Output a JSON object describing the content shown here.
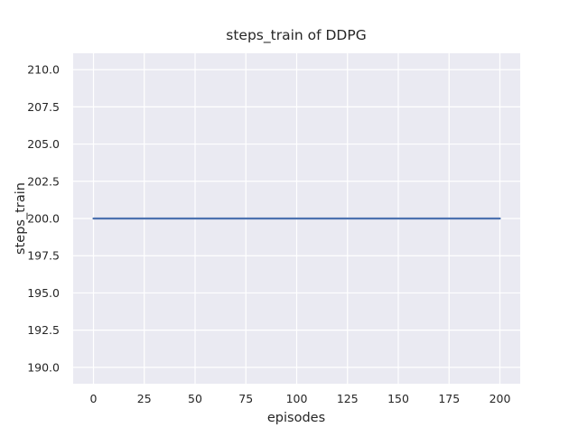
{
  "figure": {
    "background": "#ffffff"
  },
  "chart_data": {
    "type": "line",
    "title": "steps_train of DDPG",
    "xlabel": "episodes",
    "ylabel": "steps_train",
    "xlim": [
      -10,
      210
    ],
    "ylim": [
      188.9,
      211.1
    ],
    "xticks": {
      "values": [
        0,
        25,
        50,
        75,
        100,
        125,
        150,
        175,
        200
      ],
      "labels": [
        "0",
        "25",
        "50",
        "75",
        "100",
        "125",
        "150",
        "175",
        "200"
      ]
    },
    "yticks": {
      "values": [
        190,
        192.5,
        195,
        197.5,
        200,
        202.5,
        205,
        207.5,
        210
      ],
      "labels": [
        "190.0",
        "192.5",
        "195.0",
        "197.5",
        "200.0",
        "202.5",
        "205.0",
        "207.5",
        "210.0"
      ]
    },
    "grid": true,
    "legend": false,
    "style": {
      "plot_background": "#eaeaf2",
      "grid_color": "#ffffff",
      "text_color": "#262626",
      "line_color": "#4c72b0",
      "line_width": 2.2
    },
    "series": [
      {
        "name": "steps_train",
        "x": [
          0,
          200
        ],
        "y": [
          200,
          200
        ]
      }
    ]
  }
}
